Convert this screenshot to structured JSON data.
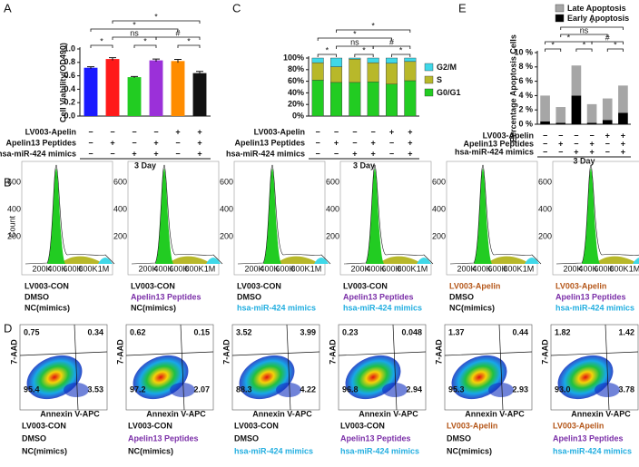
{
  "chart_data": [
    {
      "type": "bar",
      "panel": "A",
      "ylabel": "Cell Viability(OD490)",
      "values": [
        0.72,
        0.85,
        0.58,
        0.83,
        0.82,
        0.64
      ],
      "errors": [
        0.015,
        0.02,
        0.01,
        0.02,
        0.025,
        0.025
      ],
      "colors": [
        "#1a1aff",
        "#ff1a1a",
        "#22cc22",
        "#9b30d9",
        "#ff8c00",
        "#111111"
      ],
      "ylim": [
        0,
        1.0
      ],
      "yticks": [
        {
          "value": 0,
          "label": "0.0"
        },
        0.2,
        0.4,
        0.6,
        0.8,
        {
          "value": 1.0,
          "label": "1.0"
        }
      ],
      "significance": [
        {
          "pair": [
            0,
            1
          ],
          "label": "*"
        },
        {
          "pair": [
            2,
            3
          ],
          "label": "*"
        },
        {
          "pair": [
            4,
            5
          ],
          "label": "*"
        },
        {
          "pair": [
            1,
            3
          ],
          "label": "ns"
        },
        {
          "pair": [
            3,
            5
          ],
          "label": "#"
        },
        {
          "pair": [
            0,
            4
          ],
          "label": "*"
        },
        {
          "pair": [
            1,
            5
          ],
          "label": "*"
        }
      ],
      "condition_rows": [
        "LV003-Apelin",
        "Apelin13 Peptides",
        "hsa-miR-424 mimics"
      ],
      "condition_signs": [
        [
          "−",
          "−",
          "−",
          "−",
          "+",
          "+"
        ],
        [
          "−",
          "+",
          "−",
          "+",
          "−",
          "+"
        ],
        [
          "−",
          "−",
          "+",
          "+",
          "−",
          "+"
        ]
      ],
      "xlabel": "3 Day"
    },
    {
      "type": "stacked_bar",
      "panel": "C",
      "series": [
        {
          "name": "G0/G1",
          "color": "#22cc22",
          "values": [
            62,
            58,
            58,
            59,
            55,
            61
          ]
        },
        {
          "name": "S",
          "color": "#b8b82a",
          "values": [
            30,
            27,
            40,
            33,
            36,
            33
          ]
        },
        {
          "name": "G2/M",
          "color": "#3fd8e8",
          "values": [
            8,
            15,
            2,
            8,
            9,
            6
          ]
        }
      ],
      "ylim": [
        0,
        100
      ],
      "yticks": [
        {
          "value": 0,
          "label": "0%"
        },
        {
          "value": 20,
          "label": "20%"
        },
        {
          "value": 40,
          "label": "40%"
        },
        {
          "value": 60,
          "label": "60%"
        },
        {
          "value": 80,
          "label": "80%"
        },
        {
          "value": 100,
          "label": "100%"
        }
      ],
      "significance": [
        {
          "pair": [
            0,
            1
          ],
          "label": "*"
        },
        {
          "pair": [
            2,
            3
          ],
          "label": "*"
        },
        {
          "pair": [
            4,
            5
          ],
          "label": "*"
        },
        {
          "pair": [
            1,
            3
          ],
          "label": "ns"
        },
        {
          "pair": [
            3,
            5
          ],
          "label": "#"
        },
        {
          "pair": [
            0,
            4
          ],
          "label": "*"
        },
        {
          "pair": [
            1,
            5
          ],
          "label": "*"
        }
      ],
      "condition_rows": [
        "LV003-Apelin",
        "Apelin13 Peptides",
        "hsa-miR-424 mimics"
      ],
      "condition_signs": [
        [
          "−",
          "−",
          "−",
          "−",
          "+",
          "+"
        ],
        [
          "−",
          "+",
          "−",
          "+",
          "−",
          "+"
        ],
        [
          "−",
          "−",
          "+",
          "+",
          "−",
          "+"
        ]
      ],
      "xlabel": "3 Day"
    },
    {
      "type": "stacked_bar",
      "panel": "E",
      "ylabel": "Percentage Apoptosis Cells",
      "series": [
        {
          "name": "Early Apoptosis",
          "color": "#000000",
          "values": [
            0.4,
            0.2,
            4.0,
            0.2,
            0.6,
            1.6
          ]
        },
        {
          "name": "Late Apoptosis",
          "color": "#a6a6a6",
          "values": [
            3.6,
            2.2,
            4.2,
            2.6,
            3.0,
            3.8
          ]
        }
      ],
      "ylim": [
        0,
        10
      ],
      "yticks": [
        {
          "value": 0,
          "label": "0 %"
        },
        {
          "value": 2,
          "label": "2 %"
        },
        {
          "value": 4,
          "label": "4 %"
        },
        {
          "value": 6,
          "label": "6 %"
        },
        {
          "value": 8,
          "label": "8 %"
        },
        {
          "value": 10,
          "label": "10 %"
        }
      ],
      "significance": [
        {
          "pair": [
            0,
            1
          ],
          "label": "*"
        },
        {
          "pair": [
            2,
            3
          ],
          "label": "*"
        },
        {
          "pair": [
            4,
            5
          ],
          "label": "*"
        },
        {
          "pair": [
            3,
            5
          ],
          "label": "#"
        },
        {
          "pair": [
            1,
            4
          ],
          "label": "ns"
        },
        {
          "pair": [
            0,
            3
          ],
          "label": "*"
        },
        {
          "pair": [
            1,
            5
          ],
          "label": "*"
        }
      ],
      "condition_rows": [
        "LV003-Apelin",
        "Apelin13 Peptides",
        "hsa-miR-424 mimics"
      ],
      "condition_signs": [
        [
          "−",
          "−",
          "−",
          "−",
          "+",
          "+"
        ],
        [
          "−",
          "+",
          "−",
          "+",
          "−",
          "+"
        ],
        [
          "−",
          "−",
          "+",
          "+",
          "−",
          "+"
        ]
      ],
      "xlabel": "3 Day"
    }
  ],
  "conditions": [
    [
      {
        "text": "LV003-CON",
        "color": "#111111"
      },
      {
        "text": "DMSO",
        "color": "#111111"
      },
      {
        "text": "NC(mimics)",
        "color": "#111111"
      }
    ],
    [
      {
        "text": "LV003-CON",
        "color": "#111111"
      },
      {
        "text": "Apelin13 Peptides",
        "color": "#7b2fa8"
      },
      {
        "text": "NC(mimics)",
        "color": "#111111"
      }
    ],
    [
      {
        "text": "LV003-CON",
        "color": "#111111"
      },
      {
        "text": "DMSO",
        "color": "#111111"
      },
      {
        "text": "hsa-miR-424 mimics",
        "color": "#22aee0"
      }
    ],
    [
      {
        "text": "LV003-CON",
        "color": "#111111"
      },
      {
        "text": "Apelin13 Peptides",
        "color": "#7b2fa8"
      },
      {
        "text": "hsa-miR-424 mimics",
        "color": "#22aee0"
      }
    ],
    [
      {
        "text": "LV003-Apelin",
        "color": "#b5571a"
      },
      {
        "text": "DMSO",
        "color": "#111111"
      },
      {
        "text": "NC(mimics)",
        "color": "#111111"
      }
    ],
    [
      {
        "text": "LV003-Apelin",
        "color": "#b5571a"
      },
      {
        "text": "Apelin13 Peptides",
        "color": "#7b2fa8"
      },
      {
        "text": "hsa-miR-424 mimics",
        "color": "#22aee0"
      }
    ]
  ],
  "panel_b": {
    "panel": "B",
    "ylabel": "Count",
    "xticks": [
      "200K",
      "400K",
      "600K",
      "800K",
      "1M"
    ],
    "yticks": [
      "200",
      "400",
      "600"
    ]
  },
  "panel_d": {
    "panel": "D",
    "ylabel": "7-AAD",
    "xlabel": "Annexin V-APC",
    "quadrants": [
      {
        "ul": "0.75",
        "ur": "0.34",
        "ll": "95.4",
        "lr": "3.53"
      },
      {
        "ul": "0.62",
        "ur": "0.15",
        "ll": "97.2",
        "lr": "2.07"
      },
      {
        "ul": "3.52",
        "ur": "3.99",
        "ll": "88.3",
        "lr": "4.22"
      },
      {
        "ul": "0.23",
        "ur": "0.048",
        "ll": "96.8",
        "lr": "2.94"
      },
      {
        "ul": "1.37",
        "ur": "0.44",
        "ll": "95.3",
        "lr": "2.93"
      },
      {
        "ul": "1.82",
        "ur": "1.42",
        "ll": "93.0",
        "lr": "3.78"
      }
    ]
  }
}
